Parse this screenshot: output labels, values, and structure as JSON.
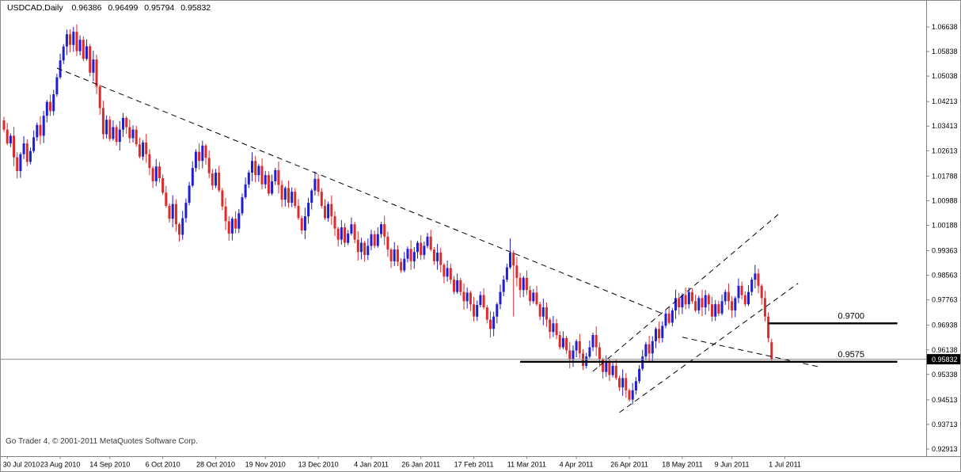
{
  "header": {
    "symbol_period": "USDCAD,Daily",
    "open": "0.96386",
    "high": "0.96499",
    "low": "0.95794",
    "close": "0.95832"
  },
  "footer": {
    "copyright": "Go Trader 4, © 2001-2011 MetaQuotes Software Corp."
  },
  "chart_data": {
    "type": "candlestick",
    "symbol": "USDCAD",
    "timeframe": "Daily",
    "quote": {
      "open": 0.96386,
      "high": 0.96499,
      "low": 0.95794,
      "close": 0.95832
    },
    "bid": 0.95832,
    "bid_label": "0.95832",
    "y_axis": {
      "max": 1.06638,
      "min": 0.92913,
      "tick_values": [
        1.06638,
        1.05838,
        1.05038,
        1.04213,
        1.03413,
        1.02613,
        1.01788,
        1.00988,
        1.00188,
        0.99363,
        0.98563,
        0.97763,
        0.96938,
        0.96138,
        0.95338,
        0.94513,
        0.93713,
        0.92913
      ],
      "tick_labels": [
        "1.06638",
        "1.05838",
        "1.05038",
        "1.04213",
        "1.03413",
        "1.02613",
        "1.01788",
        "1.00988",
        "1.00188",
        "0.99363",
        "0.98563",
        "0.97763",
        "0.96938",
        "0.96138",
        "0.95338",
        "0.94513",
        "0.93713",
        "0.92913"
      ]
    },
    "x_axis": {
      "tick_labels": [
        "30 Jul 2010",
        "23 Aug 2010",
        "14 Sep 2010",
        "6 Oct 2010",
        "28 Oct 2010",
        "19 Nov 2010",
        "13 Dec 2010",
        "4 Jan 2011",
        "26 Jan 2011",
        "17 Feb 2011",
        "11 Mar 2011",
        "4 Apr 2011",
        "26 Apr 2011",
        "18 May 2011",
        "9 Jun 2011",
        "1 Jul 2011"
      ],
      "tick_indices": [
        1,
        17,
        32,
        48,
        64,
        79,
        95,
        111,
        126,
        142,
        158,
        173,
        189,
        205,
        220,
        236
      ]
    },
    "first_open": 1.036,
    "closes": [
      1.033,
      1.0285,
      1.031,
      1.024,
      1.0195,
      1.025,
      1.0285,
      1.0225,
      1.026,
      1.0305,
      1.0345,
      1.031,
      1.0375,
      1.042,
      1.039,
      1.0445,
      1.05,
      1.0555,
      1.06,
      1.064,
      1.0605,
      1.0648,
      1.0585,
      1.0622,
      1.056,
      1.0601,
      1.0515,
      1.0558,
      1.047,
      1.04,
      1.0315,
      1.0362,
      1.03,
      1.0338,
      1.029,
      1.033,
      1.0368,
      1.0338,
      1.0302,
      1.033,
      1.0282,
      1.0242,
      1.0288,
      1.025,
      1.0205,
      1.0162,
      1.021,
      1.0172,
      1.0125,
      1.0082,
      1.004,
      1.0088,
      1.0022,
      0.9988,
      1.0042,
      1.0092,
      1.0148,
      1.0205,
      1.0258,
      1.0228,
      1.0278,
      1.0238,
      1.0188,
      1.0148,
      1.019,
      1.0132,
      1.008,
      1.0032,
      0.9992,
      1.004,
      1.0008,
      1.0058,
      1.011,
      1.0152,
      1.019,
      1.0228,
      1.0182,
      1.0212,
      1.0152,
      1.0182,
      1.0122,
      1.0162,
      1.0198,
      1.015,
      1.0102,
      1.014,
      1.0092,
      1.0128,
      1.0082,
      1.0042,
      1.0002,
      1.0048,
      1.0092,
      1.0132,
      1.017,
      1.0128,
      1.0082,
      1.0042,
      1.0088,
      1.0048,
      1.0008,
      0.9972,
      1.0012,
      0.9962,
      0.9992,
      1.0022,
      0.9972,
      0.9932,
      0.9962,
      0.9922,
      0.9952,
      0.999,
      0.9952,
      0.999,
      1.0022,
      0.9982,
      0.994,
      0.9902,
      0.994,
      0.99,
      0.9872,
      0.991,
      0.9942,
      0.9902,
      0.9932,
      0.9962,
      0.9922,
      0.9952,
      0.9982,
      0.994,
      0.9902,
      0.993,
      0.989,
      0.9852,
      0.988,
      0.9842,
      0.9802,
      0.984,
      0.9802,
      0.9772,
      0.98,
      0.9762,
      0.9722,
      0.976,
      0.9792,
      0.9752,
      0.9712,
      0.9682,
      0.9722,
      0.9762,
      0.9802,
      0.9842,
      0.9882,
      0.993,
      0.9888,
      0.9848,
      0.9808,
      0.9848,
      0.9808,
      0.9772,
      0.98,
      0.9762,
      0.9722,
      0.9752,
      0.9712,
      0.9672,
      0.97,
      0.9662,
      0.9622,
      0.9652,
      0.9612,
      0.9582,
      0.9612,
      0.9642,
      0.9602,
      0.9562,
      0.9592,
      0.9622,
      0.9662,
      0.9622,
      0.9582,
      0.9542,
      0.9572,
      0.9532,
      0.9562,
      0.9522,
      0.9492,
      0.9522,
      0.9482,
      0.9452,
      0.9482,
      0.9512,
      0.9552,
      0.9592,
      0.9632,
      0.9602,
      0.9642,
      0.9682,
      0.9652,
      0.9692,
      0.9732,
      0.9702,
      0.9742,
      0.9782,
      0.9752,
      0.9792,
      0.9762,
      0.9802,
      0.9772,
      0.9742,
      0.9782,
      0.9752,
      0.9792,
      0.9762,
      0.9722,
      0.9762,
      0.9732,
      0.9772,
      0.9802,
      0.9772,
      0.9742,
      0.9782,
      0.9822,
      0.9792,
      0.9762,
      0.9802,
      0.9842,
      0.9862,
      0.9822,
      0.9782,
      0.9722,
      0.9652,
      0.95832
    ],
    "wick_cycle": [
      0.0012,
      0.0022,
      0.0008,
      0.0028,
      0.0016,
      0.0006,
      0.0024,
      0.0014
    ],
    "wick_overrides": {
      "19": {
        "h": 1.0655
      },
      "21": {
        "h": 1.0664
      },
      "153": {
        "h": 0.9976
      },
      "154": {
        "l": 0.9722
      },
      "183": {
        "l": 0.9512
      },
      "189": {
        "l": 0.9446
      },
      "232": {
        "o": 0.96386,
        "h": 0.96499,
        "l": 0.95794
      }
    },
    "levels": [
      {
        "price": 0.97,
        "label": "0.9700",
        "from_idx": 231,
        "to_idx": 270,
        "label_idx": 252
      },
      {
        "price": 0.9575,
        "label": "0.9575",
        "from_idx": 156,
        "to_idx": 270,
        "label_idx": 252
      }
    ],
    "trendlines": [
      {
        "name": "major-downtrend",
        "from": [
          16,
          1.053
        ],
        "to": [
          199,
          0.9732
        ]
      },
      {
        "name": "ascending-channel-upper",
        "from": [
          178,
          0.9544
        ],
        "to": [
          234,
          1.0054
        ]
      },
      {
        "name": "ascending-channel-lower",
        "from": [
          186,
          0.941
        ],
        "to": [
          240,
          0.983
        ]
      },
      {
        "name": "short-descending",
        "from": [
          205,
          0.9655
        ],
        "to": [
          247,
          0.9557
        ]
      }
    ],
    "colors": {
      "bull": "#1f1fd0",
      "bear": "#dd2a2a",
      "trendline": "#000000",
      "level": "#000000",
      "bid_line": "#8c8c8c",
      "axis_line": "#808080",
      "background": "#ffffff",
      "text": "#000000"
    }
  }
}
